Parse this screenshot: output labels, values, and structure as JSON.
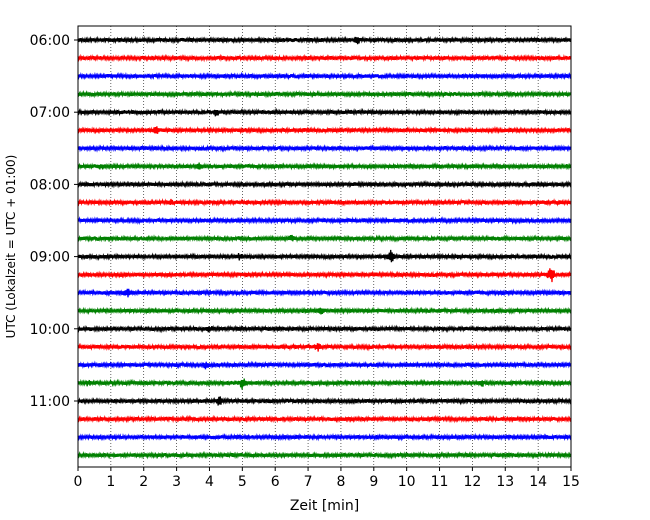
{
  "chart_data": {
    "type": "line",
    "title": "",
    "xlabel": "Zeit  [min]",
    "ylabel": "UTC (Lokalzeit = UTC + 01:00)",
    "xlim": [
      0,
      15
    ],
    "x_ticks": [
      "0",
      "1",
      "2",
      "3",
      "4",
      "5",
      "6",
      "7",
      "8",
      "9",
      "10",
      "11",
      "12",
      "13",
      "14",
      "15"
    ],
    "y_tick_labels": [
      "06:00",
      "07:00",
      "08:00",
      "09:00",
      "10:00",
      "11:00"
    ],
    "grid": "vertical dotted lines at each minute",
    "color_cycle": [
      "#000000",
      "#ff0000",
      "#0000ff",
      "#008000"
    ],
    "rows": [
      {
        "start": "06:00",
        "color": "#000000",
        "events": [
          {
            "t": 8.5,
            "amp": 4
          }
        ]
      },
      {
        "start": "06:15",
        "color": "#ff0000",
        "events": []
      },
      {
        "start": "06:30",
        "color": "#0000ff",
        "events": []
      },
      {
        "start": "06:45",
        "color": "#008000",
        "events": []
      },
      {
        "start": "07:00",
        "color": "#000000",
        "events": [
          {
            "t": 4.2,
            "amp": 4
          }
        ]
      },
      {
        "start": "07:15",
        "color": "#ff0000",
        "events": [
          {
            "t": 2.4,
            "amp": 5
          }
        ]
      },
      {
        "start": "07:30",
        "color": "#0000ff",
        "events": []
      },
      {
        "start": "07:45",
        "color": "#008000",
        "events": [
          {
            "t": 0.7,
            "amp": 3
          },
          {
            "t": 3.7,
            "amp": 3
          }
        ]
      },
      {
        "start": "08:00",
        "color": "#000000",
        "events": []
      },
      {
        "start": "08:15",
        "color": "#ff0000",
        "events": [
          {
            "t": 2.8,
            "amp": 3
          }
        ]
      },
      {
        "start": "08:30",
        "color": "#0000ff",
        "events": []
      },
      {
        "start": "08:45",
        "color": "#008000",
        "events": [
          {
            "t": 6.5,
            "amp": 3
          }
        ]
      },
      {
        "start": "09:00",
        "color": "#000000",
        "events": [
          {
            "t": 4.9,
            "amp": 3
          },
          {
            "t": 9.5,
            "amp": 7
          }
        ]
      },
      {
        "start": "09:15",
        "color": "#ff0000",
        "events": [
          {
            "t": 14.4,
            "amp": 8
          }
        ]
      },
      {
        "start": "09:30",
        "color": "#0000ff",
        "events": [
          {
            "t": 1.5,
            "amp": 5
          }
        ]
      },
      {
        "start": "09:45",
        "color": "#008000",
        "events": [
          {
            "t": 7.4,
            "amp": 3
          }
        ]
      },
      {
        "start": "10:00",
        "color": "#000000",
        "events": [
          {
            "t": 4.0,
            "amp": 3
          }
        ]
      },
      {
        "start": "10:15",
        "color": "#ff0000",
        "events": [
          {
            "t": 7.3,
            "amp": 4
          }
        ]
      },
      {
        "start": "10:30",
        "color": "#0000ff",
        "events": [
          {
            "t": 3.9,
            "amp": 4
          }
        ]
      },
      {
        "start": "10:45",
        "color": "#008000",
        "events": [
          {
            "t": 0.3,
            "amp": 3
          },
          {
            "t": 5.0,
            "amp": 6
          },
          {
            "t": 12.3,
            "amp": 3
          }
        ]
      },
      {
        "start": "11:00",
        "color": "#000000",
        "events": [
          {
            "t": 4.3,
            "amp": 5
          }
        ]
      },
      {
        "start": "11:15",
        "color": "#ff0000",
        "events": []
      },
      {
        "start": "11:30",
        "color": "#0000ff",
        "events": []
      },
      {
        "start": "11:45",
        "color": "#008000",
        "events": []
      }
    ]
  }
}
